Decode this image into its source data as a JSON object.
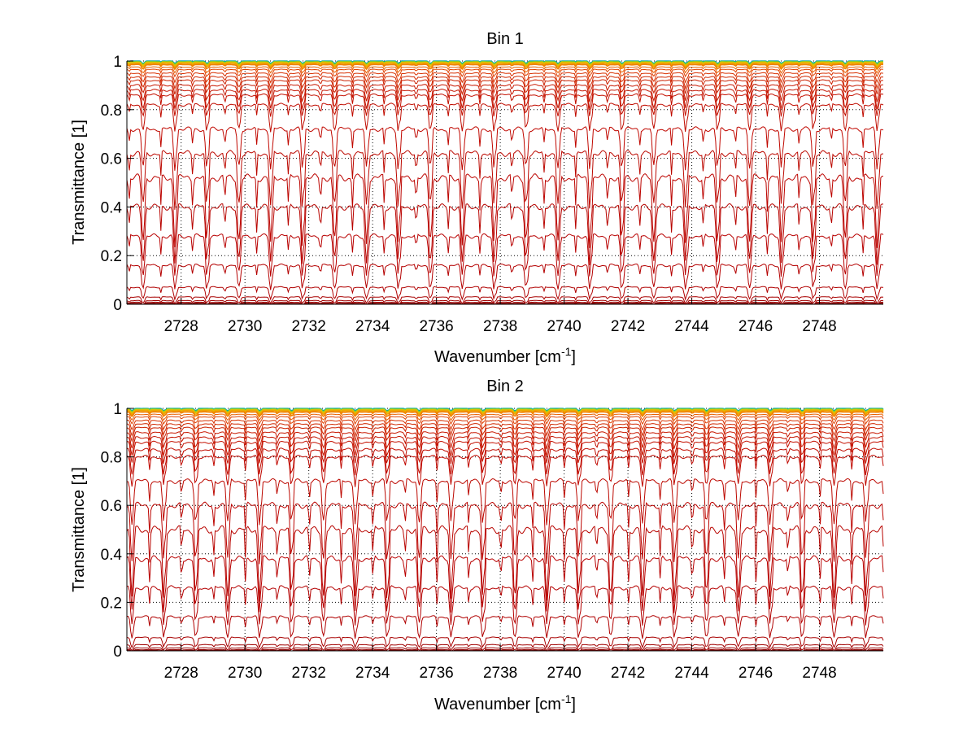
{
  "chart_data": [
    {
      "type": "line",
      "title": "Bin 1",
      "xlabel": "Wavenumber [cm",
      "xlabel_sup": "-1",
      "xlabel_tail": "]",
      "ylabel": "Transmittance [1]",
      "xlim": [
        2726.3,
        2750.0
      ],
      "ylim": [
        0,
        1
      ],
      "grid": true,
      "xticks": [
        2728,
        2730,
        2732,
        2734,
        2736,
        2738,
        2740,
        2742,
        2744,
        2746,
        2748
      ],
      "xtick_labels": [
        "2728",
        "2730",
        "2732",
        "2734",
        "2736",
        "2738",
        "2740",
        "2742",
        "2744",
        "2746",
        "2748"
      ],
      "yticks": [
        0,
        0.2,
        0.4,
        0.6,
        0.8,
        1
      ],
      "ytick_labels": [
        "0",
        "0.2",
        "0.4",
        "0.6",
        "0.8",
        "1"
      ],
      "line_period": 1.0,
      "line_phase": 0.0,
      "series_baselines": [
        1.0,
        0.998,
        0.996,
        0.994,
        0.99,
        0.985,
        0.975,
        0.965,
        0.95,
        0.935,
        0.92,
        0.9,
        0.88,
        0.86,
        0.82,
        0.72,
        0.62,
        0.52,
        0.4,
        0.28,
        0.16,
        0.07,
        0.03,
        0.015,
        0.008,
        0.004,
        0.002
      ],
      "series_colors": [
        "#00a0c0",
        "#40c060",
        "#a0d020",
        "#e0c000",
        "#f0a000",
        "#f08000",
        "#e86000",
        "#e04000",
        "#d83000",
        "#d02800",
        "#cc2000",
        "#c81800",
        "#c41400",
        "#c41000",
        "#c00c00",
        "#c00800",
        "#bc0800",
        "#bc0400",
        "#b80400",
        "#b80000",
        "#b40000",
        "#b00000",
        "#a80000",
        "#a00000",
        "#980000",
        "#900000",
        "#880000"
      ]
    },
    {
      "type": "line",
      "title": "Bin 2",
      "xlabel": "Wavenumber [cm",
      "xlabel_sup": "-1",
      "xlabel_tail": "]",
      "ylabel": "Transmittance [1]",
      "xlim": [
        2726.3,
        2750.0
      ],
      "ylim": [
        0,
        1
      ],
      "grid": true,
      "xticks": [
        2728,
        2730,
        2732,
        2734,
        2736,
        2738,
        2740,
        2742,
        2744,
        2746,
        2748
      ],
      "xtick_labels": [
        "2728",
        "2730",
        "2732",
        "2734",
        "2736",
        "2738",
        "2740",
        "2742",
        "2744",
        "2746",
        "2748"
      ],
      "yticks": [
        0,
        0.2,
        0.4,
        0.6,
        0.8,
        1
      ],
      "ytick_labels": [
        "0",
        "0.2",
        "0.4",
        "0.6",
        "0.8",
        "1"
      ],
      "line_period": 1.0,
      "line_phase": 0.35,
      "series_baselines": [
        1.0,
        0.998,
        0.996,
        0.994,
        0.99,
        0.985,
        0.975,
        0.965,
        0.95,
        0.935,
        0.92,
        0.9,
        0.88,
        0.86,
        0.83,
        0.8,
        0.7,
        0.6,
        0.5,
        0.38,
        0.26,
        0.14,
        0.055,
        0.025,
        0.012,
        0.005,
        0.002
      ],
      "series_colors": [
        "#00a0c0",
        "#40c060",
        "#a0d020",
        "#e0c000",
        "#f0a000",
        "#f08000",
        "#e86000",
        "#e04000",
        "#d83000",
        "#d02800",
        "#cc2000",
        "#c81800",
        "#c41400",
        "#c41000",
        "#c00c00",
        "#c00800",
        "#bc0800",
        "#bc0400",
        "#b80400",
        "#b80000",
        "#b40000",
        "#b00000",
        "#a80000",
        "#a00000",
        "#980000",
        "#900000",
        "#880000"
      ]
    }
  ]
}
